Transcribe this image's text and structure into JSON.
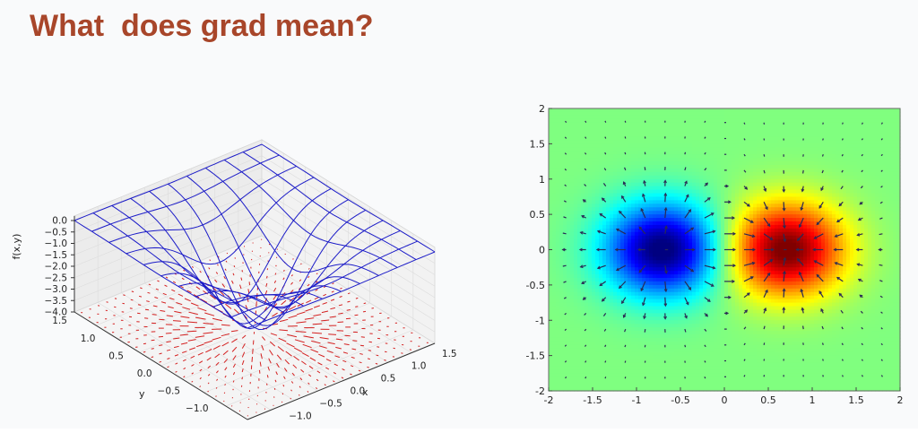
{
  "slide": {
    "title": "What  does grad mean?"
  },
  "chart_data": [
    {
      "type": "surface-3d",
      "zlabel": "f(x,y)",
      "xlabel": "x",
      "ylabel": "y",
      "x_ticks": [
        "−1.0",
        "−0.5",
        "0.0",
        "0.5",
        "1.0",
        "1.5"
      ],
      "y_ticks": [
        "−1.0",
        "−0.5",
        "0.0",
        "0.5",
        "1.0",
        "1.5"
      ],
      "z_ticks": [
        "0.0",
        "−0.5",
        "−1.0",
        "−1.5",
        "−2.0",
        "−2.5",
        "−3.0",
        "−3.5",
        "−4.0"
      ],
      "zlim": [
        -4.0,
        0.0
      ],
      "surface_color": "#1c1cc8",
      "quiver_color": "#d42020",
      "grid": true
    },
    {
      "type": "heatmap",
      "colormap": "jet",
      "xlim": [
        -2,
        2
      ],
      "ylim": [
        -2,
        2
      ],
      "x_ticks": [
        "-2",
        "-1.5",
        "-1",
        "-0.5",
        "0",
        "0.5",
        "1",
        "1.5",
        "2"
      ],
      "y_ticks": [
        "2",
        "1.5",
        "1",
        "0.5",
        "0",
        "-0.5",
        "-1",
        "-1.5",
        "-2"
      ],
      "minimum": {
        "x": -0.7,
        "y": 0
      },
      "maximum": {
        "x": 0.7,
        "y": 0
      },
      "quiver_color": "#2a2a55"
    }
  ]
}
